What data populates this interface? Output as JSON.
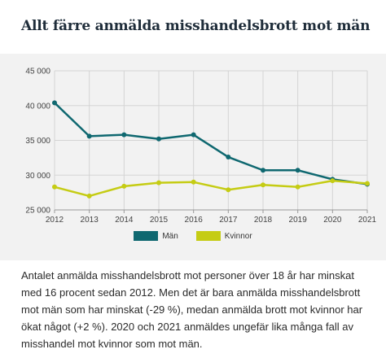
{
  "title": "Allt färre anmälda misshandelsbrott mot män",
  "description": "Antalet anmälda misshandelsbrott mot personer över 18 år har minskat med 16 procent sedan 2012. Men det är bara anmälda misshandelsbrott mot män som har minskat (-29 %), medan anmälda brott mot kvinnor har ökat något (+2 %). 2020 och 2021 anmäldes ungefär lika många fall av misshandel mot kvinnor som mot män.",
  "chart_data": {
    "type": "line",
    "x": [
      2012,
      2013,
      2014,
      2015,
      2016,
      2017,
      2018,
      2019,
      2020,
      2021
    ],
    "x_tick_labels": [
      "2012",
      "2013",
      "2014",
      "2015",
      "2016",
      "2017",
      "2018",
      "2019",
      "2020",
      "2021"
    ],
    "y_ticks": [
      25000,
      30000,
      35000,
      40000,
      45000
    ],
    "y_tick_labels": [
      "25 000",
      "30 000",
      "35 000",
      "40 000",
      "45 000"
    ],
    "ylim": [
      25000,
      45000
    ],
    "grid": true,
    "legend_position": "bottom",
    "series": [
      {
        "name": "Män",
        "color": "#0f6870",
        "values": [
          40400,
          35600,
          35800,
          35200,
          35800,
          32600,
          30700,
          30700,
          29400,
          28700
        ]
      },
      {
        "name": "Kvinnor",
        "color": "#c5cc14",
        "values": [
          28300,
          27000,
          28400,
          28900,
          29000,
          27900,
          28600,
          28300,
          29200,
          28800
        ]
      }
    ]
  }
}
